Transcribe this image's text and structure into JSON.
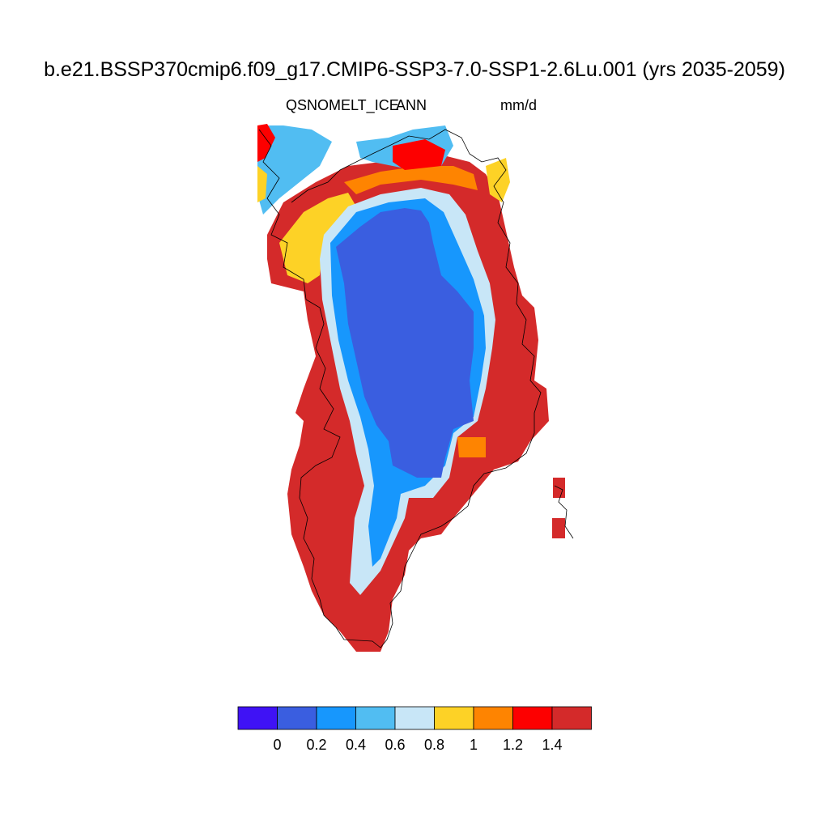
{
  "header": {
    "title": "b.e21.BSSP370cmip6.f09_g17.CMIP6-SSP3-7.0-SSP1-2.6Lu.001 (yrs 2035-2059)",
    "variable": "QSNOMELT_ICE",
    "season": "ANN",
    "units": "mm/d"
  },
  "colorbar": {
    "colors": [
      "#3f12f5",
      "#3a5ee0",
      "#1797fd",
      "#51bdf2",
      "#c8e6f7",
      "#fdd226",
      "#fe8401",
      "#fd0000",
      "#d42a2a"
    ],
    "tick_labels": [
      "0",
      "0.2",
      "0.4",
      "0.6",
      "0.8",
      "1",
      "1.2",
      "1.4"
    ],
    "levels": [
      0,
      0.2,
      0.4,
      0.6,
      0.8,
      1.0,
      1.2,
      1.4
    ]
  },
  "map": {
    "region": "Greenland",
    "field_classes": {
      "low_interior": "#3a5ee0",
      "band_0_4_0_6": "#1797fd",
      "band_0_6_0_8": "#51bdf2",
      "band_0_8_1_0": "#c8e6f7",
      "band_1_0_1_2": "#fdd226",
      "band_1_2_1_4": "#fe8401",
      "band_1_4": "#fd0000",
      "above_1_4": "#d42a2a"
    }
  }
}
